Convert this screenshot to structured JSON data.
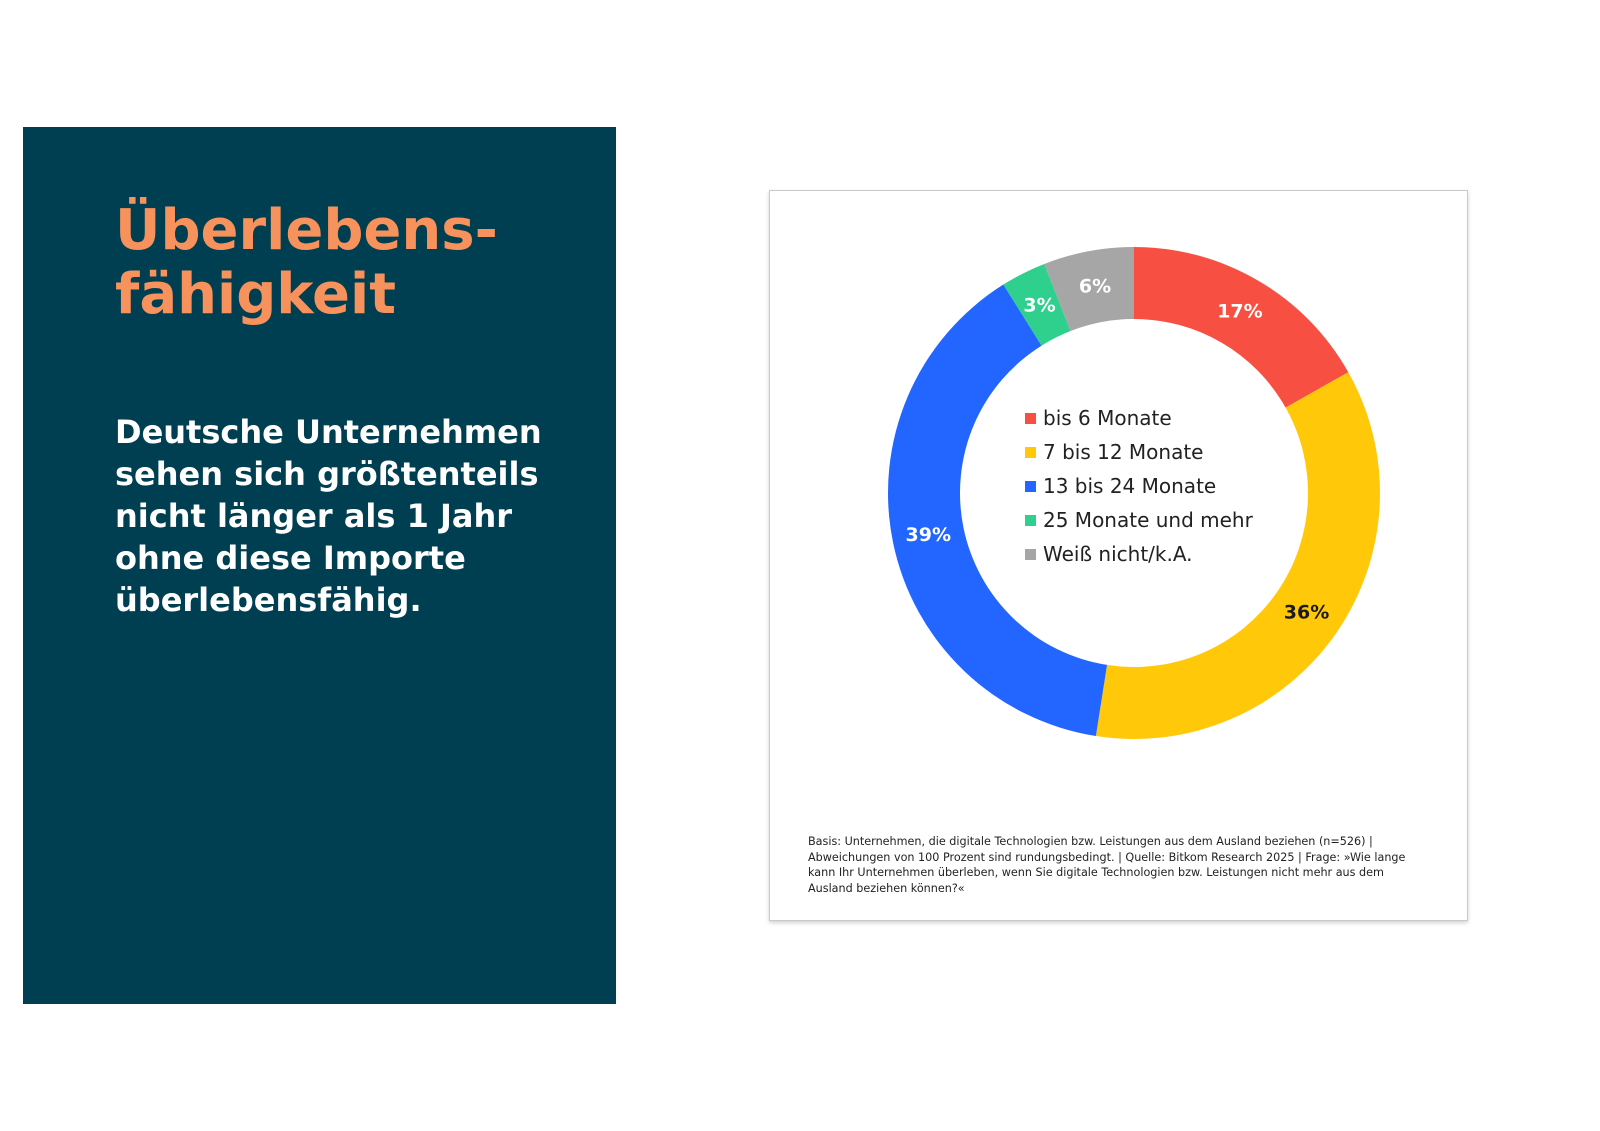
{
  "left_panel": {
    "headline": "Überlebens-\nfähigkeit",
    "subtext": "Deutsche Unternehmen sehen sich größtenteils nicht länger als 1 Jahr ohne diese Importe überlebensfähig."
  },
  "colors": {
    "panel_background": "#003f51",
    "headline": "#f7925c",
    "subtext": "#ffffff"
  },
  "chart_data": {
    "type": "pie",
    "variant": "donut",
    "start_angle_deg": 0,
    "direction": "clockwise",
    "slices": [
      {
        "label": "bis 6 Monate",
        "value": 17,
        "value_label": "17%",
        "color": "#f74f42",
        "label_color": "#ffffff"
      },
      {
        "label": "7 bis 12 Monate",
        "value": 36,
        "value_label": "36%",
        "color": "#ffc90a",
        "label_color": "#1a1a1a"
      },
      {
        "label": "13 bis 24 Monate",
        "value": 39,
        "value_label": "39%",
        "color": "#2266ff",
        "label_color": "#ffffff"
      },
      {
        "label": "25 Monate und mehr",
        "value": 3,
        "value_label": "3%",
        "color": "#2fcf8e",
        "label_color": "#ffffff"
      },
      {
        "label": "Weiß nicht/k.A.",
        "value": 6,
        "value_label": "6%",
        "color": "#a6a6a6",
        "label_color": "#ffffff"
      }
    ],
    "legend_position": "center",
    "footnote": "Basis: Unternehmen, die digitale Technologien bzw. Leistungen aus dem Ausland beziehen (n=526) | Abweichungen von 100 Prozent sind rundungsbedingt. | Quelle: Bitkom Research 2025 | Frage: »Wie lange kann Ihr Unternehmen überleben, wenn Sie digitale Technologien bzw. Leistungen nicht mehr aus dem Ausland beziehen können?«"
  }
}
